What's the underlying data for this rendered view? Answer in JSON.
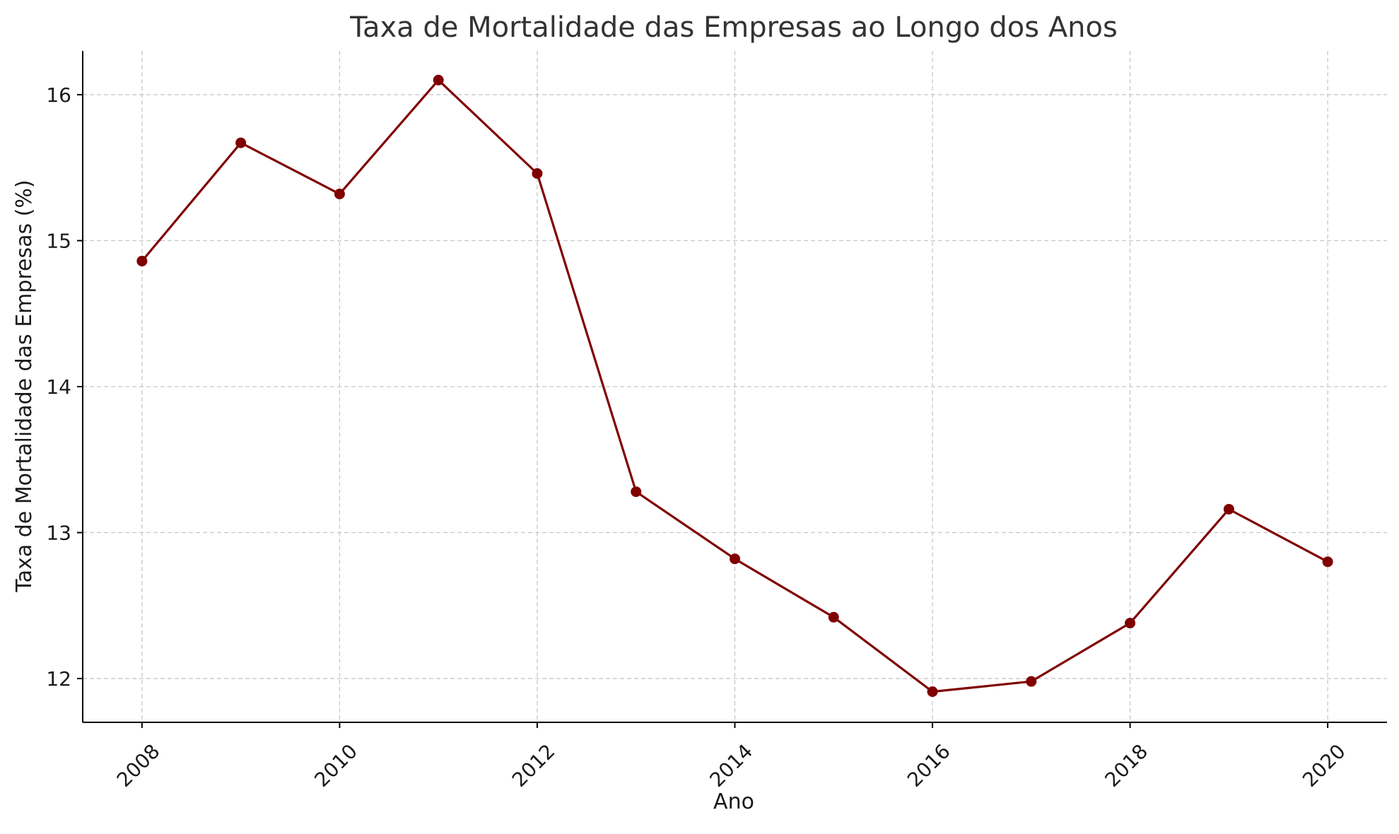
{
  "chart_data": {
    "type": "line",
    "title": "Taxa de Mortalidade das Empresas ao Longo dos Anos",
    "xlabel": "Ano",
    "ylabel": "Taxa de Mortalidade das Empresas (%)",
    "x": [
      2008,
      2009,
      2010,
      2011,
      2012,
      2013,
      2014,
      2015,
      2016,
      2017,
      2018,
      2019,
      2020
    ],
    "series": [
      {
        "values": [
          14.86,
          15.67,
          15.32,
          16.1,
          15.46,
          13.28,
          12.82,
          12.42,
          11.91,
          11.98,
          12.38,
          13.16,
          12.8
        ],
        "color": "#800000"
      }
    ],
    "xlim": [
      2007.4,
      2020.6
    ],
    "ylim": [
      11.7,
      16.3
    ],
    "xticks": [
      2008,
      2010,
      2012,
      2014,
      2016,
      2018,
      2020
    ],
    "yticks": [
      12,
      13,
      14,
      15,
      16
    ],
    "grid": true,
    "legend": "none"
  }
}
